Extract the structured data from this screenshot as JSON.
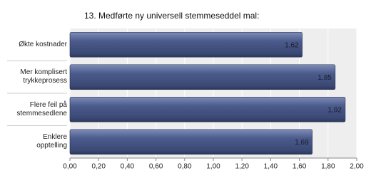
{
  "chart_data": {
    "type": "bar",
    "orientation": "horizontal",
    "title": "13. Medførte ny universell stemmeseddel mal:",
    "categories": [
      "Økte kostnader",
      "Mer komplisert\ntrykkeprosess",
      "Flere feil på\nstemmesedlene",
      "Enklere\nopptelling"
    ],
    "values": [
      1.62,
      1.85,
      1.92,
      1.69
    ],
    "value_labels": [
      "1,62",
      "1,85",
      "1,92",
      "1,69"
    ],
    "color": "#4b5b8c",
    "xlim": [
      0,
      2
    ],
    "xticks": [
      {
        "value": 0,
        "label": "0,00"
      },
      {
        "value": 0.2,
        "label": "0,20"
      },
      {
        "value": 0.4,
        "label": "0,40"
      },
      {
        "value": 0.6,
        "label": "0,60"
      },
      {
        "value": 0.8,
        "label": "0,80"
      },
      {
        "value": 1,
        "label": "1,00"
      },
      {
        "value": 1.2,
        "label": "1,20"
      },
      {
        "value": 1.4,
        "label": "1,40"
      },
      {
        "value": 1.6,
        "label": "1,60"
      },
      {
        "value": 1.8,
        "label": "1,80"
      },
      {
        "value": 2,
        "label": "2,00"
      }
    ],
    "grid": true
  }
}
